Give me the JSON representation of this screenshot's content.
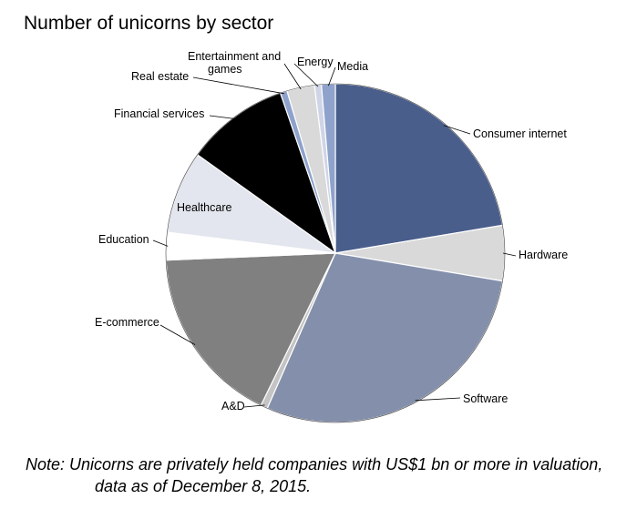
{
  "chart_data": {
    "type": "pie",
    "title": "Number of unicorns by sector",
    "slices": [
      {
        "label": "Consumer internet",
        "value": 34,
        "color": "#4a5e8c"
      },
      {
        "label": "Hardware",
        "value": 8,
        "color": "#d9d9d9"
      },
      {
        "label": "Software",
        "value": 44,
        "color": "#8490ab"
      },
      {
        "label": "A&D",
        "value": 1,
        "color": "#c4c4c4"
      },
      {
        "label": "E-commerce",
        "value": 26,
        "color": "#808080"
      },
      {
        "label": "Education",
        "value": 4,
        "color": "#ffffff"
      },
      {
        "label": "Healthcare",
        "value": 12,
        "color": "#e3e6ee"
      },
      {
        "label": "Financial services",
        "value": 15,
        "color": "#000000"
      },
      {
        "label": "Real estate",
        "value": 1,
        "color": "#8ea2cc"
      },
      {
        "label": "Entertainment and games",
        "value": 4,
        "color": "#d9d9d9"
      },
      {
        "label": "Energy",
        "value": 1,
        "color": "#cfd5e6"
      },
      {
        "label": "Media",
        "value": 2,
        "color": "#8ea2cc"
      }
    ]
  },
  "note": {
    "line1": "Note: Unicorns are privately held companies with US$1 bn or more in valuation,",
    "line2": "data as of December 8, 2015."
  }
}
